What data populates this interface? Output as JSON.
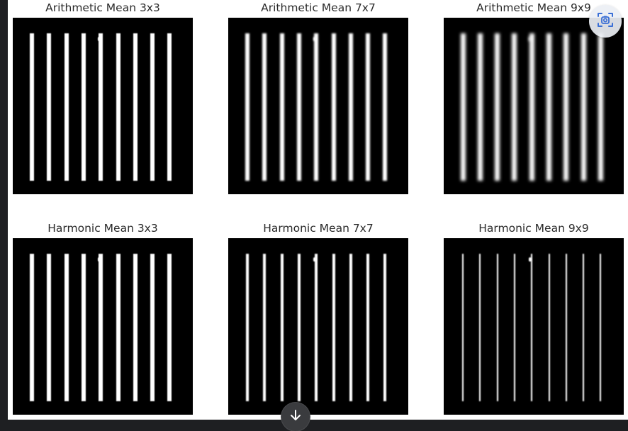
{
  "figure": {
    "panels": [
      {
        "title": "Arithmetic Mean 3x3",
        "blur": 0.4,
        "stripe_w": 6
      },
      {
        "title": "Arithmetic Mean 7x7",
        "blur": 1.4,
        "stripe_w": 6
      },
      {
        "title": "Arithmetic Mean 9x9",
        "blur": 2.2,
        "stripe_w": 7
      },
      {
        "title": "Harmonic Mean 3x3",
        "blur": 0.4,
        "stripe_w": 6
      },
      {
        "title": "Harmonic Mean 7x7",
        "blur": 0.8,
        "stripe_w": 4
      },
      {
        "title": "Harmonic Mean 9x9",
        "blur": 0.7,
        "stripe_w": 2
      }
    ],
    "stripe_count": 9
  },
  "overlay": {
    "lens_icon": "visual-search-icon",
    "scroll_icon": "arrow-down-icon",
    "accent": "#3a6fd6"
  }
}
